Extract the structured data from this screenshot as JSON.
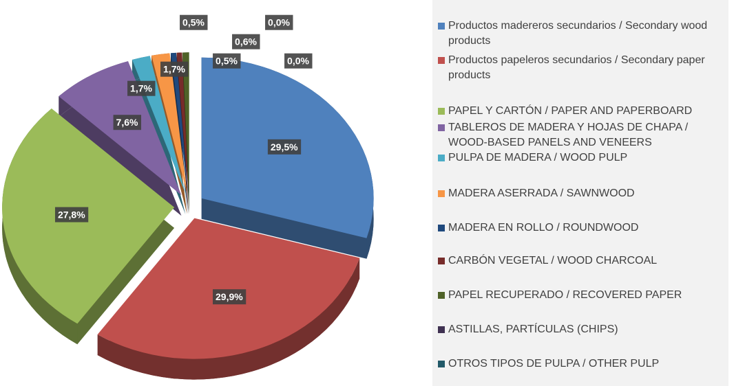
{
  "chart_data": {
    "type": "pie",
    "categories": [
      "Productos madereros secundarios / Secondary wood products",
      "Productos papeleros secundarios / Secondary paper products",
      "PAPEL Y CARTÓN / PAPER AND PAPERBOARD",
      "TABLEROS DE MADERA Y HOJAS DE CHAPA / WOOD-BASED PANELS AND VENEERS",
      "PULPA DE MADERA / WOOD PULP",
      "MADERA ASERRADA / SAWNWOOD",
      "MADERA EN ROLLO / ROUNDWOOD",
      "CARBÓN VEGETAL / WOOD CHARCOAL",
      "PAPEL RECUPERADO / RECOVERED PAPER",
      "ASTILLAS, PARTÍCULAS (CHIPS)",
      "OTROS TIPOS DE PULPA / OTHER PULP"
    ],
    "values": [
      29.5,
      29.9,
      27.8,
      7.6,
      1.7,
      1.7,
      0.5,
      0.5,
      0.6,
      0.0,
      0.0
    ],
    "value_labels": [
      "29,5%",
      "29,9%",
      "27,8%",
      "7,6%",
      "1,7%",
      "1,7%",
      "0,5%",
      "0,5%",
      "0,6%",
      "0,0%",
      "0,0%"
    ],
    "colors": [
      "#4f81bd",
      "#c0504d",
      "#9bbb59",
      "#8064a2",
      "#4bacc6",
      "#f79646",
      "#1f497d",
      "#772c2a",
      "#4f6228",
      "#3f3151",
      "#215968"
    ],
    "legend": "right"
  }
}
